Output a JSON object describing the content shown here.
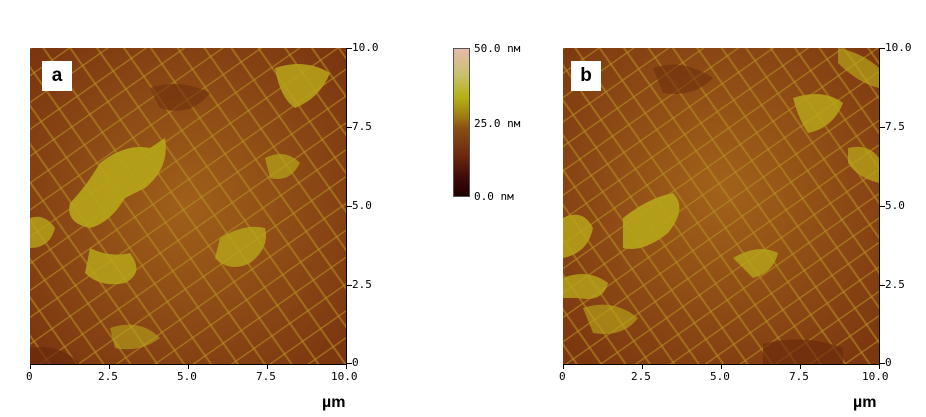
{
  "panels": [
    {
      "label": "a",
      "x_ticks": [
        "0",
        "2.5",
        "5.0",
        "7.5",
        "10.0"
      ],
      "y_ticks": [
        "10.0",
        "7.5",
        "5.0",
        "2.5",
        "0"
      ],
      "x_unit": "µm"
    },
    {
      "label": "b",
      "x_ticks": [
        "0",
        "2.5",
        "5.0",
        "7.5",
        "10.0"
      ],
      "y_ticks": [
        "10.0",
        "7.5",
        "5.0",
        "2.5",
        "0"
      ],
      "x_unit": "µm"
    }
  ],
  "colorbar": {
    "max_label": "50.0 nм",
    "mid_label": "25.0 nм",
    "min_label": "0.0 nм"
  },
  "colors": {
    "terrace_dark": "#7a3a10",
    "terrace_mid": "#9a5a14",
    "step_line": "#b08a1a",
    "island": "#b8a418"
  }
}
